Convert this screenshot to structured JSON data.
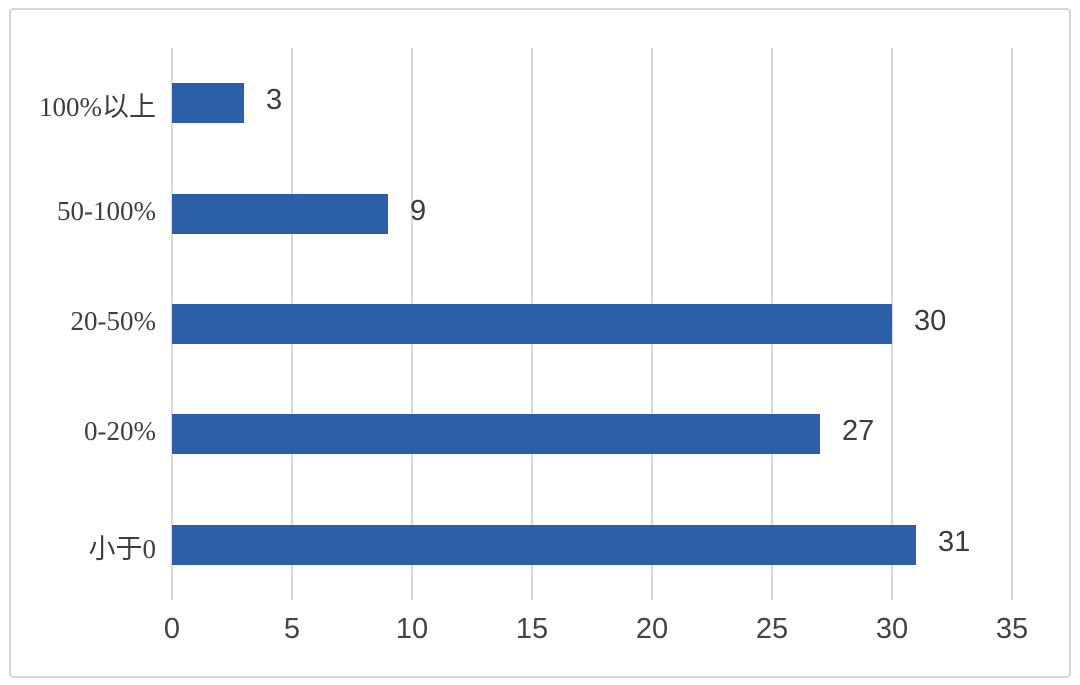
{
  "chart_data": {
    "type": "bar",
    "orientation": "horizontal",
    "title": "",
    "xlabel": "",
    "ylabel": "",
    "categories": [
      "100%以上",
      "50-100%",
      "20-50%",
      "0-20%",
      "小于0"
    ],
    "values": [
      3,
      9,
      30,
      27,
      31
    ],
    "data_labels": [
      "3",
      "9",
      "30",
      "27",
      "31"
    ],
    "xlim": [
      0,
      35
    ],
    "x_ticks": [
      "0",
      "5",
      "10",
      "15",
      "20",
      "25",
      "30",
      "35"
    ],
    "grid": true,
    "legend": false,
    "bar_color": "#2b5fa7",
    "gridline_color": "#d9d9d9",
    "text_color": "#3f3f3f",
    "frame_color": "#d6d6d6",
    "background_color": "#ffffff"
  }
}
